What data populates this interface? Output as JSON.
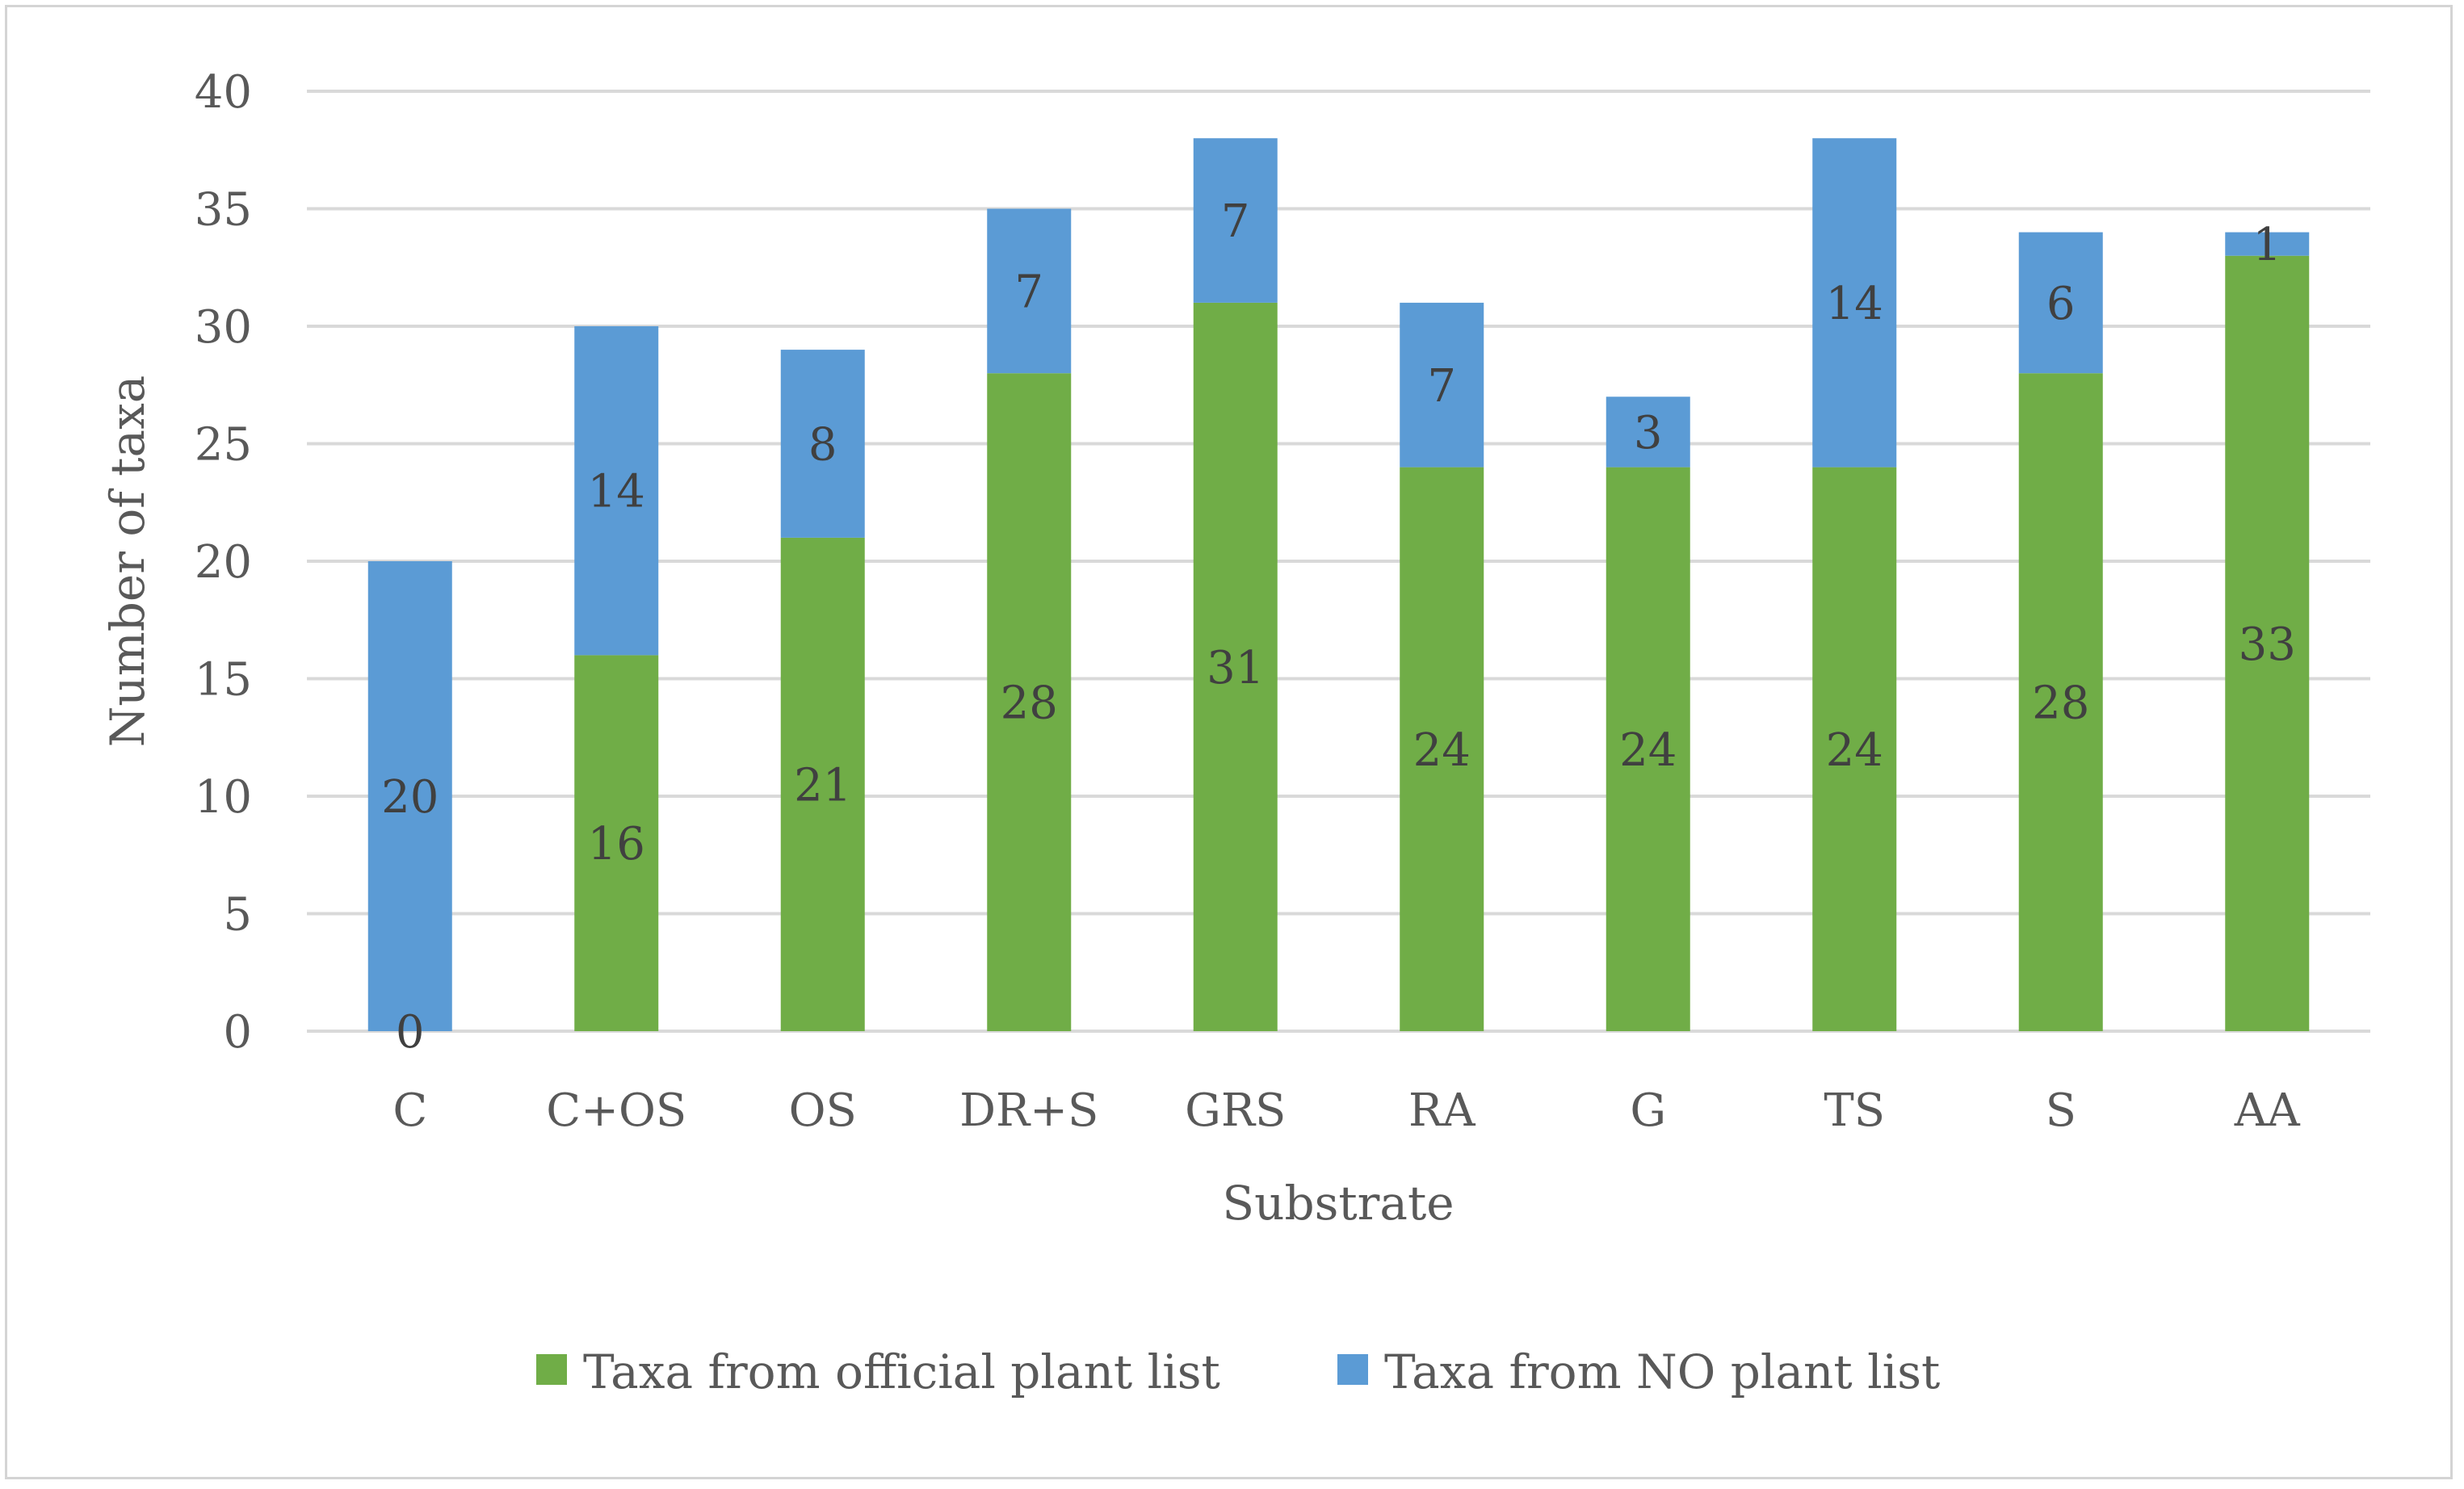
{
  "chart_data": {
    "type": "bar",
    "stacked": true,
    "title": "",
    "xlabel": "Substrate",
    "ylabel": "Number of taxa",
    "ylim": [
      0,
      40
    ],
    "yticks": [
      0,
      5,
      10,
      15,
      20,
      25,
      30,
      35,
      40
    ],
    "ytick_labels": [
      "0",
      "5",
      "10",
      "15",
      "20",
      "25",
      "30",
      "35",
      "40"
    ],
    "grid": true,
    "legend_position": "bottom",
    "categories": [
      "C",
      "C+OS",
      "OS",
      "DR+S",
      "GRS",
      "RA",
      "G",
      "TS",
      "S",
      "AA"
    ],
    "series": [
      {
        "name": "Taxa from official plant list",
        "color": "#70ad47",
        "values": [
          0,
          16,
          21,
          28,
          31,
          24,
          24,
          24,
          28,
          33
        ],
        "labels": [
          "0",
          "16",
          "21",
          "28",
          "31",
          "24",
          "24",
          "24",
          "28",
          "33"
        ]
      },
      {
        "name": "Taxa from NO plant list",
        "color": "#5b9bd5",
        "values": [
          20,
          14,
          8,
          7,
          7,
          7,
          3,
          14,
          6,
          1
        ],
        "labels": [
          "20",
          "14",
          "8",
          "7",
          "7",
          "7",
          "3",
          "14",
          "6",
          "1"
        ]
      }
    ]
  },
  "colors": {
    "gridline": "#d9d9d9",
    "axis_line": "#d9d9d9",
    "frame": "#d4d4d4",
    "text": "#595959",
    "data_label": "#404040"
  }
}
